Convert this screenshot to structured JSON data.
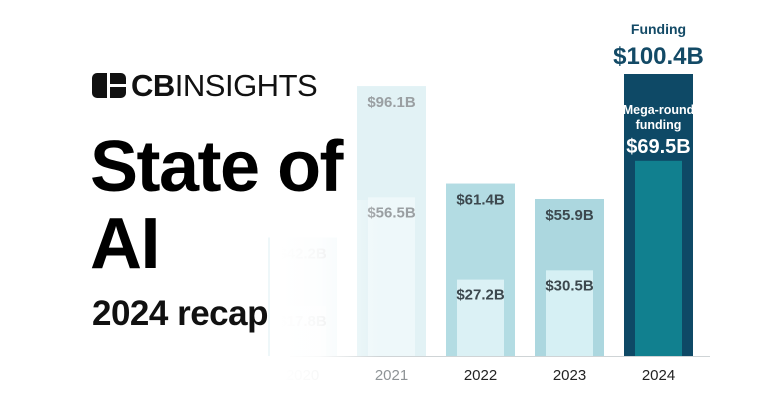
{
  "brand": {
    "logo_text_bold": "CB",
    "logo_text": "INSIGHTS"
  },
  "title": {
    "line1": "State of",
    "line2": "AI",
    "subtitle": "2024 recap"
  },
  "chart_data": {
    "type": "bar",
    "categories": [
      "2020",
      "2021",
      "2022",
      "2023",
      "2024"
    ],
    "series": [
      {
        "name": "Funding",
        "values": [
          42.2,
          96.1,
          61.4,
          55.9,
          100.4
        ],
        "labels": [
          "$42.2B",
          "$96.1B",
          "$61.4B",
          "$55.9B",
          "$100.4B"
        ]
      },
      {
        "name": "Mega-round funding",
        "values": [
          17.8,
          56.5,
          27.2,
          30.5,
          69.5
        ],
        "labels": [
          "$17.8B",
          "$56.5B",
          "$27.2B",
          "$30.5B",
          "$69.5B"
        ]
      }
    ],
    "highlight_labels": {
      "funding": "Funding",
      "mega_line1": "Mega-round",
      "mega_line2": "funding"
    },
    "ylim": [
      0,
      100.4
    ],
    "grid": false,
    "colors": {
      "outer": [
        "#eef7f9",
        "#e2f2f5",
        "#b3dce3",
        "#acd7df",
        "#0e4966"
      ],
      "inner": [
        "#f6fbfc",
        "#eef8fa",
        "#dbf1f5",
        "#d6f0f4",
        "#11808f"
      ],
      "label": [
        "#c8cccd",
        "#9a9fa2",
        "#3c484e",
        "#3c484e",
        "#ffffff"
      ],
      "year": [
        "#c8cccd",
        "#8e9396",
        "#222222",
        "#222222",
        "#222222"
      ],
      "accent": "#134a66",
      "axis": "#cfd4d6"
    }
  }
}
